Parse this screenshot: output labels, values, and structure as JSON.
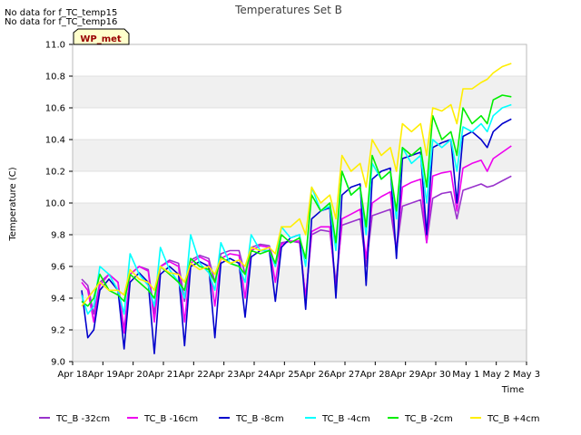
{
  "notes": [
    "No data for f_TC_temp15",
    "No data for f_TC_temp16"
  ],
  "badge": "WP_met",
  "colors": {
    "plot_bg": "#ffffff",
    "band_bg": "#f0f0f0",
    "grid": "#d9d9d9",
    "axis": "#bbbbbb",
    "badge_bg": "#ffffcc",
    "badge_text": "#990000"
  },
  "chart_data": {
    "type": "line",
    "title": "Temperatures Set B",
    "xlabel": "Time",
    "ylabel": "Temperature (C)",
    "xlim": [
      0,
      15
    ],
    "ylim": [
      9.0,
      11.0
    ],
    "grid": true,
    "legend_position": "bottom",
    "x_ticks": [
      {
        "v": 0,
        "label": "Apr 18"
      },
      {
        "v": 1,
        "label": "Apr 19"
      },
      {
        "v": 2,
        "label": "Apr 20"
      },
      {
        "v": 3,
        "label": "Apr 21"
      },
      {
        "v": 4,
        "label": "Apr 22"
      },
      {
        "v": 5,
        "label": "Apr 23"
      },
      {
        "v": 6,
        "label": "Apr 24"
      },
      {
        "v": 7,
        "label": "Apr 25"
      },
      {
        "v": 8,
        "label": "Apr 26"
      },
      {
        "v": 9,
        "label": "Apr 27"
      },
      {
        "v": 10,
        "label": "Apr 28"
      },
      {
        "v": 11,
        "label": "Apr 29"
      },
      {
        "v": 12,
        "label": "Apr 30"
      },
      {
        "v": 13,
        "label": "May 1"
      },
      {
        "v": 14,
        "label": "May 2"
      },
      {
        "v": 15,
        "label": "May 3"
      }
    ],
    "y_ticks": [
      {
        "v": 9.0,
        "label": "9.0"
      },
      {
        "v": 9.2,
        "label": "9.2"
      },
      {
        "v": 9.4,
        "label": "9.4"
      },
      {
        "v": 9.6,
        "label": "9.6"
      },
      {
        "v": 9.8,
        "label": "9.8"
      },
      {
        "v": 10.0,
        "label": "10.0"
      },
      {
        "v": 10.2,
        "label": "10.2"
      },
      {
        "v": 10.4,
        "label": "10.4"
      },
      {
        "v": 10.6,
        "label": "10.6"
      },
      {
        "v": 10.8,
        "label": "10.8"
      },
      {
        "v": 11.0,
        "label": "11.0"
      }
    ],
    "series": [
      {
        "name": "TC_B -32cm",
        "color": "#9933cc",
        "x": [
          0.3,
          0.5,
          0.7,
          0.9,
          1.2,
          1.5,
          1.7,
          1.9,
          2.2,
          2.5,
          2.7,
          2.9,
          3.2,
          3.5,
          3.7,
          3.9,
          4.2,
          4.5,
          4.7,
          4.9,
          5.2,
          5.5,
          5.7,
          5.9,
          6.2,
          6.5,
          6.7,
          6.9,
          7.2,
          7.5,
          7.7,
          7.9,
          8.2,
          8.5,
          8.7,
          8.9,
          9.2,
          9.5,
          9.7,
          9.9,
          10.2,
          10.5,
          10.7,
          10.9,
          11.2,
          11.5,
          11.7,
          11.9,
          12.2,
          12.5,
          12.7,
          12.9,
          13.2,
          13.5,
          13.7,
          13.9,
          14.2,
          14.5
        ],
        "y": [
          9.52,
          9.48,
          9.3,
          9.5,
          9.55,
          9.5,
          9.2,
          9.55,
          9.6,
          9.58,
          9.3,
          9.6,
          9.64,
          9.62,
          9.38,
          9.64,
          9.67,
          9.65,
          9.5,
          9.68,
          9.7,
          9.7,
          9.55,
          9.72,
          9.74,
          9.73,
          9.6,
          9.75,
          9.76,
          9.75,
          9.4,
          9.8,
          9.83,
          9.82,
          9.5,
          9.86,
          9.88,
          9.9,
          9.6,
          9.92,
          9.94,
          9.96,
          9.7,
          9.98,
          10.0,
          10.02,
          9.75,
          10.03,
          10.06,
          10.07,
          9.9,
          10.08,
          10.1,
          10.12,
          10.1,
          10.11,
          10.14,
          10.17
        ]
      },
      {
        "name": "TC_B -16cm",
        "color": "#ee00ee",
        "x": [
          0.3,
          0.5,
          0.7,
          0.9,
          1.2,
          1.5,
          1.7,
          1.9,
          2.2,
          2.5,
          2.7,
          2.9,
          3.2,
          3.5,
          3.7,
          3.9,
          4.2,
          4.5,
          4.7,
          4.9,
          5.2,
          5.5,
          5.7,
          5.9,
          6.2,
          6.5,
          6.7,
          6.9,
          7.2,
          7.5,
          7.7,
          7.9,
          8.2,
          8.5,
          8.7,
          8.9,
          9.2,
          9.5,
          9.7,
          9.9,
          10.2,
          10.5,
          10.7,
          10.9,
          11.2,
          11.5,
          11.7,
          11.9,
          12.2,
          12.5,
          12.7,
          12.9,
          13.2,
          13.5,
          13.7,
          13.9,
          14.2,
          14.5
        ],
        "y": [
          9.5,
          9.45,
          9.25,
          9.48,
          9.55,
          9.5,
          9.18,
          9.55,
          9.6,
          9.57,
          9.25,
          9.6,
          9.63,
          9.6,
          9.25,
          9.62,
          9.66,
          9.63,
          9.35,
          9.65,
          9.68,
          9.67,
          9.4,
          9.7,
          9.73,
          9.72,
          9.5,
          9.74,
          9.76,
          9.76,
          9.4,
          9.82,
          9.85,
          9.85,
          9.45,
          9.9,
          9.93,
          9.96,
          9.65,
          10.0,
          10.04,
          10.07,
          9.7,
          10.1,
          10.13,
          10.15,
          9.75,
          10.17,
          10.19,
          10.2,
          9.95,
          10.22,
          10.25,
          10.27,
          10.2,
          10.28,
          10.32,
          10.36
        ]
      },
      {
        "name": "TC_B -8cm",
        "color": "#0000cc",
        "x": [
          0.3,
          0.5,
          0.7,
          0.9,
          1.2,
          1.5,
          1.7,
          1.9,
          2.2,
          2.5,
          2.7,
          2.9,
          3.2,
          3.5,
          3.7,
          3.9,
          4.2,
          4.5,
          4.7,
          4.9,
          5.2,
          5.5,
          5.7,
          5.9,
          6.2,
          6.5,
          6.7,
          6.9,
          7.2,
          7.5,
          7.7,
          7.9,
          8.2,
          8.5,
          8.7,
          8.9,
          9.2,
          9.5,
          9.7,
          9.9,
          10.2,
          10.5,
          10.7,
          10.9,
          11.2,
          11.5,
          11.7,
          11.9,
          12.2,
          12.5,
          12.7,
          12.9,
          13.2,
          13.5,
          13.7,
          13.9,
          14.2,
          14.5
        ],
        "y": [
          9.45,
          9.15,
          9.2,
          9.45,
          9.52,
          9.45,
          9.08,
          9.5,
          9.56,
          9.5,
          9.05,
          9.55,
          9.6,
          9.55,
          9.1,
          9.6,
          9.63,
          9.6,
          9.15,
          9.62,
          9.65,
          9.62,
          9.28,
          9.66,
          9.7,
          9.7,
          9.38,
          9.72,
          9.78,
          9.8,
          9.33,
          9.9,
          9.95,
          9.97,
          9.4,
          10.05,
          10.1,
          10.12,
          9.48,
          10.15,
          10.2,
          10.22,
          9.65,
          10.28,
          10.3,
          10.32,
          9.8,
          10.35,
          10.38,
          10.4,
          10.0,
          10.42,
          10.45,
          10.4,
          10.35,
          10.45,
          10.5,
          10.53
        ]
      },
      {
        "name": "TC_B -4cm",
        "color": "#00ffff",
        "x": [
          0.3,
          0.5,
          0.7,
          0.9,
          1.2,
          1.5,
          1.7,
          1.9,
          2.2,
          2.5,
          2.7,
          2.9,
          3.2,
          3.5,
          3.7,
          3.9,
          4.2,
          4.5,
          4.7,
          4.9,
          5.2,
          5.5,
          5.7,
          5.9,
          6.2,
          6.5,
          6.7,
          6.9,
          7.2,
          7.5,
          7.7,
          7.9,
          8.2,
          8.5,
          8.7,
          8.9,
          9.2,
          9.5,
          9.7,
          9.9,
          10.2,
          10.5,
          10.7,
          10.9,
          11.2,
          11.5,
          11.7,
          11.9,
          12.2,
          12.5,
          12.7,
          12.9,
          13.2,
          13.5,
          13.7,
          13.9,
          14.2,
          14.5
        ],
        "y": [
          9.42,
          9.3,
          9.35,
          9.6,
          9.55,
          9.45,
          9.3,
          9.68,
          9.55,
          9.48,
          9.35,
          9.72,
          9.58,
          9.5,
          9.4,
          9.8,
          9.62,
          9.56,
          9.45,
          9.75,
          9.62,
          9.6,
          9.5,
          9.8,
          9.7,
          9.7,
          9.6,
          9.85,
          9.78,
          9.8,
          9.6,
          10.1,
          9.95,
          9.98,
          9.7,
          10.2,
          10.05,
          10.1,
          9.8,
          10.25,
          10.15,
          10.2,
          9.9,
          10.35,
          10.25,
          10.3,
          10.0,
          10.4,
          10.35,
          10.4,
          10.2,
          10.48,
          10.45,
          10.5,
          10.45,
          10.55,
          10.6,
          10.62
        ]
      },
      {
        "name": "TC_B -2cm",
        "color": "#00ee00",
        "x": [
          0.3,
          0.5,
          0.7,
          0.9,
          1.2,
          1.5,
          1.7,
          1.9,
          2.2,
          2.5,
          2.7,
          2.9,
          3.2,
          3.5,
          3.7,
          3.9,
          4.2,
          4.5,
          4.7,
          4.9,
          5.2,
          5.5,
          5.7,
          5.9,
          6.2,
          6.5,
          6.7,
          6.9,
          7.2,
          7.5,
          7.7,
          7.9,
          8.2,
          8.5,
          8.7,
          8.9,
          9.2,
          9.5,
          9.7,
          9.9,
          10.2,
          10.5,
          10.7,
          10.9,
          11.2,
          11.5,
          11.7,
          11.9,
          12.2,
          12.5,
          12.7,
          12.9,
          13.2,
          13.5,
          13.7,
          13.9,
          14.2,
          14.5
        ],
        "y": [
          9.38,
          9.35,
          9.4,
          9.55,
          9.45,
          9.42,
          9.38,
          9.55,
          9.5,
          9.45,
          9.4,
          9.6,
          9.55,
          9.5,
          9.45,
          9.65,
          9.6,
          9.58,
          9.5,
          9.66,
          9.62,
          9.6,
          9.55,
          9.7,
          9.68,
          9.7,
          9.62,
          9.8,
          9.75,
          9.78,
          9.65,
          10.05,
          9.95,
          10.0,
          9.75,
          10.2,
          10.05,
          10.1,
          9.85,
          10.3,
          10.15,
          10.2,
          9.95,
          10.35,
          10.3,
          10.35,
          10.1,
          10.55,
          10.4,
          10.45,
          10.3,
          10.6,
          10.5,
          10.55,
          10.5,
          10.65,
          10.68,
          10.67
        ]
      },
      {
        "name": "TC_B +4cm",
        "color": "#ffee00",
        "x": [
          0.3,
          0.5,
          0.7,
          0.9,
          1.2,
          1.5,
          1.7,
          1.9,
          2.2,
          2.5,
          2.7,
          2.9,
          3.2,
          3.5,
          3.7,
          3.9,
          4.2,
          4.5,
          4.7,
          4.9,
          5.2,
          5.5,
          5.7,
          5.9,
          6.2,
          6.5,
          6.7,
          6.9,
          7.2,
          7.5,
          7.7,
          7.9,
          8.2,
          8.5,
          8.7,
          8.9,
          9.2,
          9.5,
          9.7,
          9.9,
          10.2,
          10.5,
          10.7,
          10.9,
          11.2,
          11.5,
          11.7,
          11.9,
          12.2,
          12.5,
          12.7,
          12.9,
          13.2,
          13.5,
          13.7,
          13.9,
          14.2,
          14.5
        ],
        "y": [
          9.35,
          9.4,
          9.45,
          9.5,
          9.45,
          9.45,
          9.42,
          9.58,
          9.52,
          9.5,
          9.45,
          9.6,
          9.56,
          9.55,
          9.5,
          9.62,
          9.58,
          9.6,
          9.55,
          9.65,
          9.62,
          9.64,
          9.6,
          9.72,
          9.7,
          9.72,
          9.68,
          9.85,
          9.85,
          9.9,
          9.8,
          10.1,
          10.0,
          10.05,
          9.9,
          10.3,
          10.2,
          10.25,
          10.1,
          10.4,
          10.3,
          10.35,
          10.2,
          10.5,
          10.45,
          10.5,
          10.3,
          10.6,
          10.58,
          10.62,
          10.5,
          10.72,
          10.72,
          10.76,
          10.78,
          10.82,
          10.86,
          10.88
        ]
      }
    ]
  }
}
